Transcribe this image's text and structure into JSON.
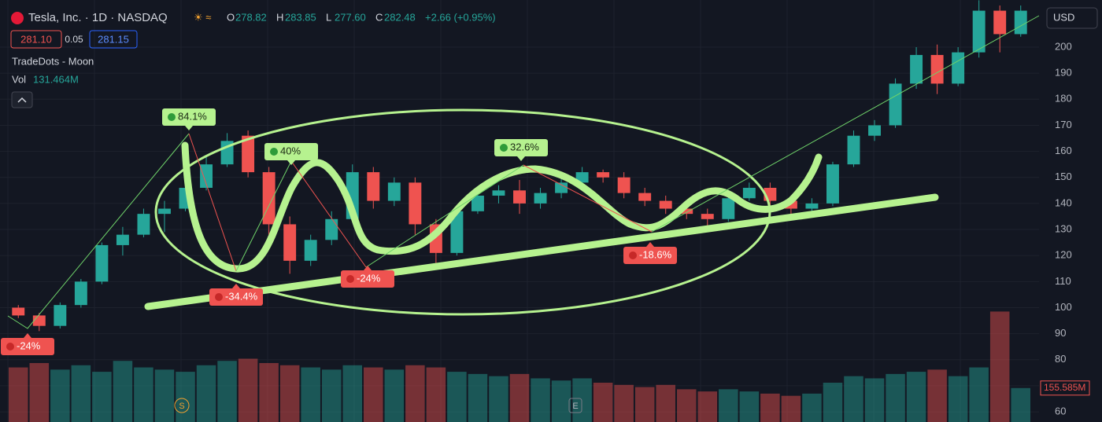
{
  "header": {
    "symbol": "Tesla, Inc. · 1D · NASDAQ",
    "ohlc": [
      [
        "O",
        "278.82"
      ],
      [
        "H",
        "283.85"
      ],
      [
        "L",
        "277.60"
      ],
      [
        "C",
        "282.48"
      ]
    ],
    "change": "+2.66 (+0.95%)",
    "bid": "281.10",
    "spread": "0.05",
    "ask": "281.15",
    "indicator": "TradeDots - Moon",
    "vol_label": "Vol",
    "vol_value": "131.464M",
    "currency": "USD",
    "markers": [
      "S",
      "E"
    ]
  },
  "chart_data": {
    "type": "candlestick",
    "open": [
      100,
      97,
      93,
      101,
      110,
      124,
      128,
      136,
      138,
      146,
      155,
      166,
      152,
      132,
      118,
      126,
      134,
      152,
      141,
      148,
      132,
      121,
      137,
      143,
      145,
      140,
      144,
      148,
      152,
      150,
      144,
      141,
      138,
      136,
      134,
      142,
      146,
      141,
      138,
      140,
      155,
      166,
      170,
      186,
      197,
      186,
      198,
      214,
      205
    ],
    "high": [
      101,
      98,
      102,
      111,
      125,
      131,
      138,
      141,
      148,
      158,
      167,
      168,
      154,
      135,
      128,
      137,
      155,
      154,
      150,
      150,
      134,
      138,
      145,
      147,
      149,
      146,
      150,
      154,
      153,
      152,
      146,
      143,
      141,
      138,
      143,
      148,
      148,
      143,
      142,
      156,
      168,
      172,
      188,
      200,
      201,
      200,
      218,
      216,
      216
    ],
    "low": [
      96,
      91,
      92,
      100,
      109,
      120,
      127,
      129,
      137,
      145,
      154,
      150,
      128,
      113,
      116,
      124,
      133,
      138,
      139,
      128,
      117,
      120,
      136,
      140,
      136,
      138,
      142,
      146,
      148,
      142,
      139,
      136,
      134,
      131,
      133,
      141,
      139,
      136,
      137,
      139,
      154,
      164,
      169,
      184,
      182,
      185,
      196,
      198,
      204
    ],
    "close": [
      97,
      93,
      101,
      110,
      124,
      128,
      136,
      138,
      146,
      155,
      164,
      152,
      132,
      118,
      126,
      134,
      152,
      141,
      148,
      132,
      121,
      137,
      143,
      145,
      140,
      144,
      148,
      152,
      150,
      144,
      141,
      138,
      136,
      134,
      142,
      146,
      141,
      138,
      140,
      155,
      166,
      170,
      186,
      197,
      186,
      198,
      214,
      205,
      214
    ],
    "volume": [
      250,
      270,
      240,
      260,
      230,
      280,
      250,
      240,
      230,
      260,
      280,
      290,
      270,
      260,
      250,
      240,
      260,
      250,
      240,
      260,
      250,
      230,
      220,
      210,
      220,
      200,
      190,
      200,
      180,
      170,
      160,
      170,
      150,
      140,
      150,
      140,
      130,
      120,
      130,
      180,
      210,
      200,
      220,
      230,
      240,
      210,
      250,
      506,
      155.585
    ],
    "up_color": "#26a69a",
    "down_color": "#ef5350",
    "ylim": [
      56.1,
      218.1
    ],
    "yticks": [
      60,
      70,
      80,
      90,
      100,
      110,
      120,
      130,
      140,
      150,
      160,
      170,
      180,
      190,
      200
    ],
    "y2lim": [
      0,
      540
    ],
    "y2ticks": [
      {
        "value": 155.585,
        "label": "155.585M"
      }
    ],
    "annotations": [
      {
        "text": "-24%",
        "color": "#ef5350"
      },
      {
        "text": "84.1%",
        "color": "#b6f28f"
      },
      {
        "text": "-34.4%",
        "color": "#ef5350"
      },
      {
        "text": "40%",
        "color": "#b6f28f"
      },
      {
        "text": "-24%",
        "color": "#ef5350"
      },
      {
        "text": "32.6%",
        "color": "#b6f28f"
      },
      {
        "text": "-18.6%",
        "color": "#ef5350"
      }
    ]
  }
}
